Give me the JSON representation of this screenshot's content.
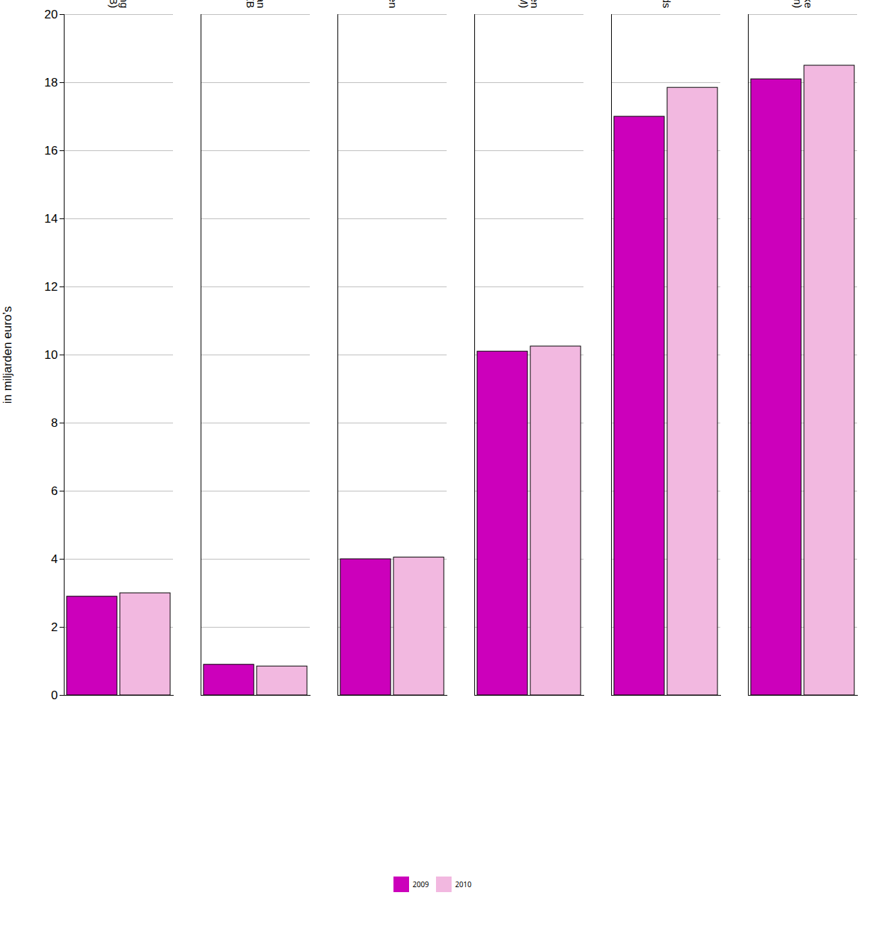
{
  "chart_data": {
    "type": "bar",
    "categories": [
      "Onroerendezaakbelasting\n(OZB)",
      "andere belastingen dan\nOZB",
      "Rechten & heffingen",
      "Baten uit overige eigen\nmiddelen (OEM)",
      "Gemeentefonds",
      "Overig (m.n. specifieke\nuitkeringen)"
    ],
    "series": [
      {
        "name": "2009",
        "color": "#CC00BB",
        "values": [
          2.9,
          0.9,
          4.0,
          10.1,
          17.0,
          18.1
        ]
      },
      {
        "name": "2010",
        "color": "#F2B8E0",
        "values": [
          3.0,
          0.85,
          4.05,
          10.25,
          17.85,
          18.5
        ]
      }
    ],
    "ylabel": "in miljarden euro’s",
    "ylim": [
      0,
      20
    ],
    "yticks": [
      0,
      2,
      4,
      6,
      8,
      10,
      12,
      14,
      16,
      18,
      20
    ],
    "grid": true,
    "legend": "bottom"
  }
}
